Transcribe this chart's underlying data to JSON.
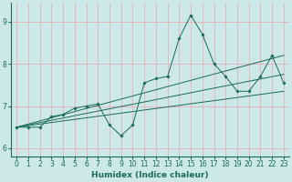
{
  "xlabel": "Humidex (Indice chaleur)",
  "background_color": "#cce8e8",
  "grid_color": "#e8b0b0",
  "line_color": "#1a6b5a",
  "xlim": [
    -0.5,
    23.5
  ],
  "ylim": [
    5.8,
    9.45
  ],
  "xticks": [
    0,
    1,
    2,
    3,
    4,
    5,
    6,
    7,
    8,
    9,
    10,
    11,
    12,
    13,
    14,
    15,
    16,
    17,
    18,
    19,
    20,
    21,
    22,
    23
  ],
  "yticks": [
    6,
    7,
    8,
    9
  ],
  "series": [
    [
      0,
      6.5
    ],
    [
      1,
      6.5
    ],
    [
      2,
      6.5
    ],
    [
      3,
      6.75
    ],
    [
      4,
      6.8
    ],
    [
      5,
      6.95
    ],
    [
      6,
      7.0
    ],
    [
      7,
      7.05
    ],
    [
      8,
      6.55
    ],
    [
      9,
      6.3
    ],
    [
      10,
      6.55
    ],
    [
      11,
      7.55
    ],
    [
      12,
      7.65
    ],
    [
      13,
      7.7
    ],
    [
      14,
      8.6
    ],
    [
      15,
      9.15
    ],
    [
      16,
      8.7
    ],
    [
      17,
      8.0
    ],
    [
      18,
      7.7
    ],
    [
      19,
      7.35
    ],
    [
      20,
      7.35
    ],
    [
      21,
      7.7
    ],
    [
      22,
      8.2
    ],
    [
      23,
      7.55
    ]
  ],
  "regression_lines": [
    {
      "x": [
        0,
        23
      ],
      "y": [
        6.5,
        8.2
      ]
    },
    {
      "x": [
        0,
        23
      ],
      "y": [
        6.5,
        7.75
      ]
    },
    {
      "x": [
        0,
        23
      ],
      "y": [
        6.5,
        7.35
      ]
    }
  ],
  "tick_fontsize": 5.5,
  "label_fontsize": 6.5
}
